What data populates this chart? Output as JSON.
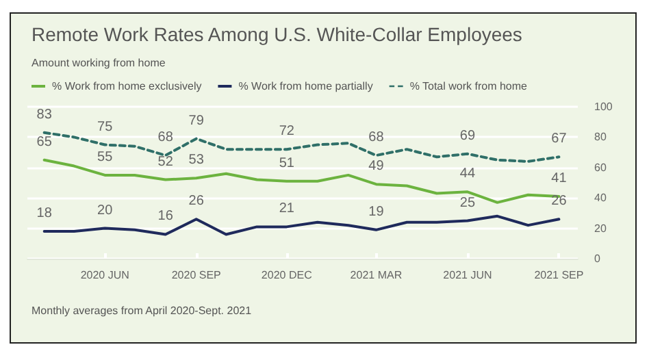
{
  "chart_data": {
    "type": "line",
    "title": "Remote Work Rates Among U.S. White-Collar Employees",
    "subtitle": "Amount working from home",
    "annotations": [
      "Monthly averages from April 2020-Sept. 2021"
    ],
    "x": [
      "2020-04",
      "2020-05",
      "2020-06",
      "2020-07",
      "2020-08",
      "2020-09",
      "2020-10",
      "2020-11",
      "2020-12",
      "2021-01",
      "2021-02",
      "2021-03",
      "2021-04",
      "2021-05",
      "2021-06",
      "2021-07",
      "2021-08",
      "2021-09"
    ],
    "xlim": [
      "2020-03-15",
      "2021-09-20"
    ],
    "xticks": [
      {
        "value": "2020-06",
        "label": "2020 JUN"
      },
      {
        "value": "2020-09",
        "label": "2020 SEP"
      },
      {
        "value": "2020-12",
        "label": "2020 DEC"
      },
      {
        "value": "2021-03",
        "label": "2021 MAR"
      },
      {
        "value": "2021-06",
        "label": "2021 JUN"
      },
      {
        "value": "2021-09",
        "label": "2021 SEP"
      }
    ],
    "ylim": [
      0,
      100
    ],
    "yticks": [
      0,
      20,
      40,
      60,
      80,
      100
    ],
    "grid": "y",
    "legend": "top left",
    "marker": "none",
    "series": [
      {
        "name": "% Work from home exclusively",
        "color": "#6cb33f",
        "line_style": "solid",
        "values": [
          65,
          61,
          55,
          55,
          52,
          53,
          56,
          52,
          51,
          51,
          55,
          49,
          48,
          43,
          44,
          37,
          42,
          41
        ],
        "value_labels": [
          "65",
          null,
          "55",
          null,
          "52",
          "53",
          null,
          null,
          "51",
          null,
          null,
          "49",
          null,
          null,
          "44",
          null,
          null,
          "41"
        ]
      },
      {
        "name": "% Work from home partially",
        "color": "#1f2a5c",
        "line_style": "solid",
        "values": [
          18,
          18,
          20,
          19,
          16,
          26,
          16,
          21,
          21,
          24,
          22,
          19,
          24,
          24,
          25,
          28,
          22,
          26
        ],
        "value_labels": [
          "18",
          null,
          "20",
          null,
          "16",
          "26",
          null,
          null,
          "21",
          null,
          null,
          "19",
          null,
          null,
          "25",
          null,
          null,
          "26"
        ]
      },
      {
        "name": "% Total work from home",
        "color": "#2f6f68",
        "line_style": "dashed",
        "values": [
          83,
          80,
          75,
          74,
          68,
          79,
          72,
          72,
          72,
          75,
          76,
          68,
          72,
          67,
          69,
          65,
          64,
          67
        ],
        "value_labels": [
          "83",
          null,
          "75",
          null,
          "68",
          "79",
          null,
          null,
          "72",
          null,
          null,
          "68",
          null,
          null,
          "69",
          null,
          null,
          "67"
        ]
      }
    ]
  }
}
